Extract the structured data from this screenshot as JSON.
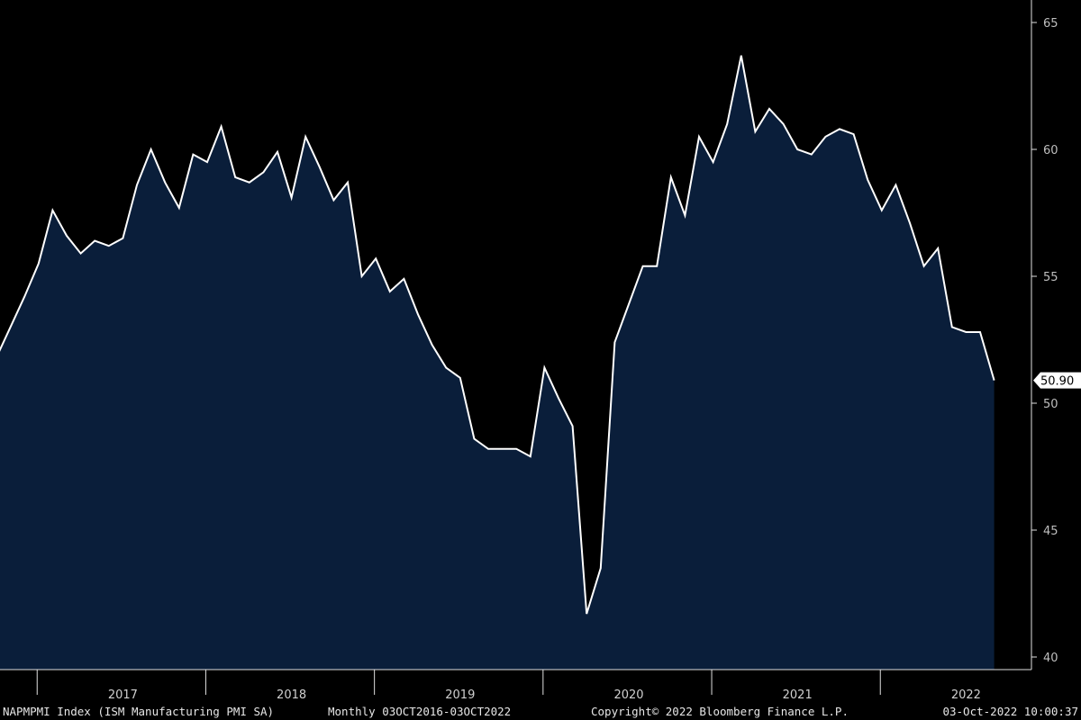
{
  "chart_data": {
    "type": "area",
    "x": [
      "2016-10",
      "2016-11",
      "2016-12",
      "2017-01",
      "2017-02",
      "2017-03",
      "2017-04",
      "2017-05",
      "2017-06",
      "2017-07",
      "2017-08",
      "2017-09",
      "2017-10",
      "2017-11",
      "2017-12",
      "2018-01",
      "2018-02",
      "2018-03",
      "2018-04",
      "2018-05",
      "2018-06",
      "2018-07",
      "2018-08",
      "2018-09",
      "2018-10",
      "2018-11",
      "2018-12",
      "2019-01",
      "2019-02",
      "2019-03",
      "2019-04",
      "2019-05",
      "2019-06",
      "2019-07",
      "2019-08",
      "2019-09",
      "2019-10",
      "2019-11",
      "2019-12",
      "2020-01",
      "2020-02",
      "2020-03",
      "2020-04",
      "2020-05",
      "2020-06",
      "2020-07",
      "2020-08",
      "2020-09",
      "2020-10",
      "2020-11",
      "2020-12",
      "2021-01",
      "2021-02",
      "2021-03",
      "2021-04",
      "2021-05",
      "2021-06",
      "2021-07",
      "2021-08",
      "2021-09",
      "2021-10",
      "2021-11",
      "2021-12",
      "2022-01",
      "2022-02",
      "2022-03",
      "2022-04",
      "2022-05",
      "2022-06",
      "2022-07",
      "2022-08",
      "2022-09"
    ],
    "values": [
      51.8,
      53.0,
      54.2,
      55.5,
      57.6,
      56.6,
      55.9,
      56.4,
      56.2,
      56.5,
      58.6,
      60.0,
      58.7,
      57.7,
      59.8,
      59.5,
      60.9,
      58.9,
      58.7,
      59.1,
      59.9,
      58.1,
      60.5,
      59.3,
      58.0,
      58.7,
      55.0,
      55.7,
      54.4,
      54.9,
      53.5,
      52.3,
      51.4,
      51.0,
      48.6,
      48.2,
      48.2,
      48.2,
      47.9,
      51.4,
      50.2,
      49.1,
      41.7,
      43.5,
      52.4,
      53.9,
      55.4,
      55.4,
      58.9,
      57.4,
      60.5,
      59.5,
      61.0,
      63.7,
      60.7,
      61.6,
      61.0,
      60.0,
      59.8,
      60.5,
      60.8,
      60.6,
      58.8,
      57.6,
      58.6,
      57.1,
      55.4,
      56.1,
      53.0,
      52.8,
      52.8,
      50.9
    ],
    "ylim": [
      40,
      65
    ],
    "yticks": [
      "65",
      "60",
      "55",
      "50",
      "45",
      "40"
    ],
    "xtick_labels": [
      "2017",
      "2018",
      "2019",
      "2020",
      "2021",
      "2022"
    ],
    "last_value_label": "50.90",
    "grid": false,
    "colors": {
      "background": "#000000",
      "fill": "#0a1e3a",
      "line": "#ffffff",
      "axis": "#e0e0e0"
    }
  },
  "footer": {
    "security": "NAPMPMI Index (ISM Manufacturing PMI SA)",
    "period": "Monthly 03OCT2016-03OCT2022",
    "copyright": "Copyright© 2022 Bloomberg Finance L.P.",
    "timestamp": "03-Oct-2022 10:00:37"
  }
}
